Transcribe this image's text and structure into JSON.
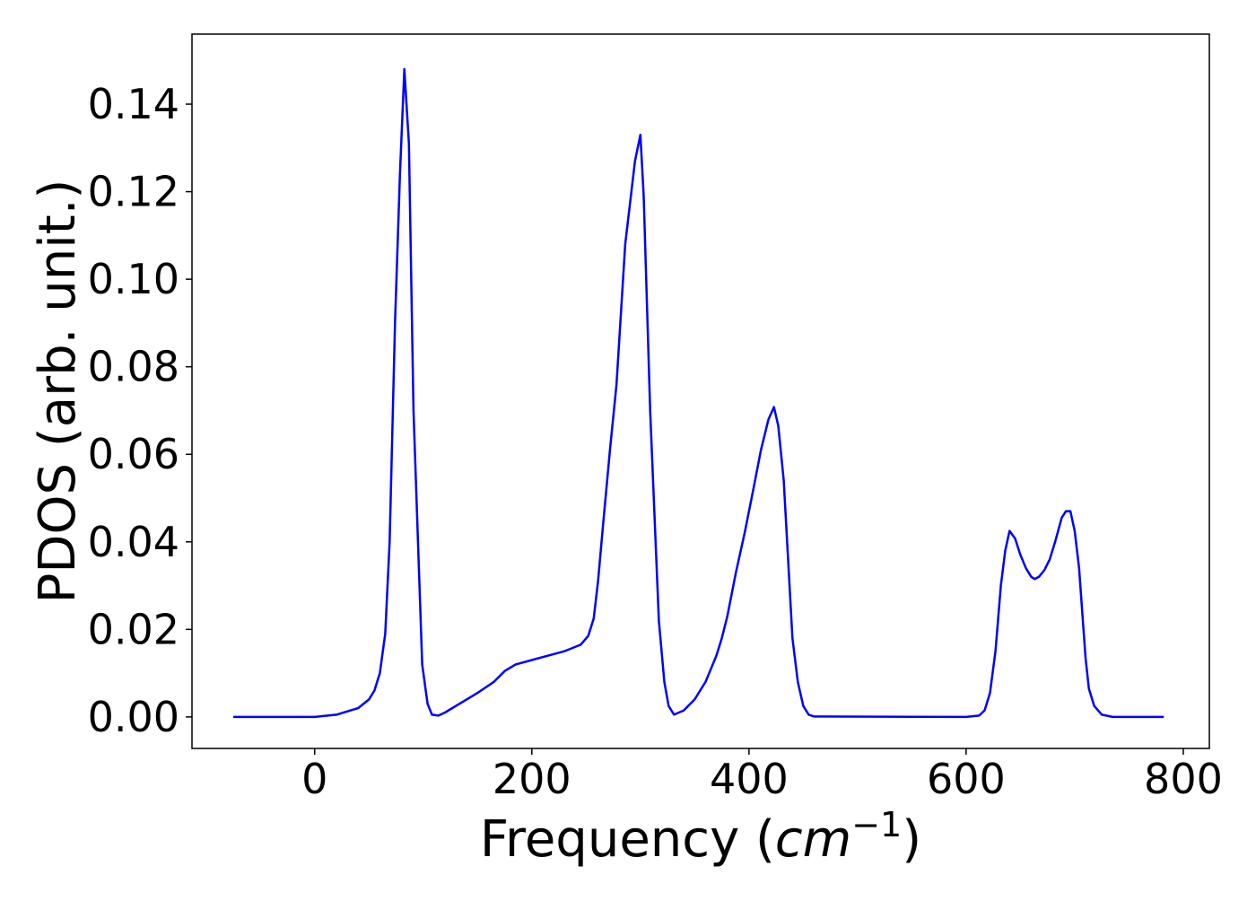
{
  "chart_data": {
    "type": "line",
    "ylabel": "PDOS (arb. unit.)",
    "xlabel": [
      "Frequency (",
      "cm",
      "−1",
      ")"
    ],
    "xlim": [
      -113,
      824
    ],
    "ylim": [
      -0.0072,
      0.156
    ],
    "xticks": [
      0,
      200,
      400,
      600,
      800
    ],
    "yticks": [
      {
        "value": 0,
        "label": "0.00"
      },
      0.02,
      0.04,
      0.06,
      0.08,
      {
        "value": 0.1,
        "label": "0.10"
      },
      0.12,
      0.14
    ],
    "series": [
      {
        "color": "#0000ff",
        "x": [
          -75,
          0,
          20,
          40,
          50,
          55,
          60,
          65,
          69,
          74,
          78.5,
          82.6,
          86.8,
          91,
          99,
          104,
          108,
          114,
          120,
          130,
          140,
          150,
          165,
          175,
          185,
          200,
          215,
          230,
          245,
          252,
          257,
          261,
          266,
          272,
          278,
          286,
          295,
          300,
          303,
          309,
          317,
          322,
          326,
          331,
          340,
          350,
          360,
          365,
          370,
          375,
          380,
          388,
          396,
          404,
          411,
          418,
          423,
          427,
          432,
          440,
          445,
          450,
          455,
          460,
          600,
          612,
          617,
          622,
          627,
          632,
          636,
          640,
          645,
          650,
          655,
          660,
          663,
          667,
          672,
          677,
          682,
          688,
          692,
          696,
          700,
          704,
          710,
          713,
          718,
          725,
          735,
          782
        ],
        "values": [
          0,
          0,
          0.0005,
          0.002,
          0.004,
          0.006,
          0.01,
          0.019,
          0.04,
          0.09,
          0.124,
          0.148,
          0.131,
          0.07,
          0.012,
          0.003,
          0.0005,
          0.0003,
          0.001,
          0.0025,
          0.004,
          0.0055,
          0.008,
          0.0105,
          0.012,
          0.013,
          0.014,
          0.015,
          0.0165,
          0.0185,
          0.0225,
          0.031,
          0.045,
          0.061,
          0.076,
          0.108,
          0.127,
          0.133,
          0.119,
          0.07,
          0.022,
          0.008,
          0.0025,
          0.0005,
          0.0015,
          0.004,
          0.008,
          0.011,
          0.014,
          0.018,
          0.023,
          0.033,
          0.042,
          0.052,
          0.061,
          0.068,
          0.0708,
          0.0665,
          0.054,
          0.018,
          0.008,
          0.0025,
          0.0005,
          0.0001,
          0,
          0.0003,
          0.0015,
          0.0055,
          0.015,
          0.03,
          0.038,
          0.0425,
          0.0408,
          0.037,
          0.034,
          0.032,
          0.0315,
          0.032,
          0.0335,
          0.036,
          0.04,
          0.0455,
          0.047,
          0.047,
          0.0425,
          0.034,
          0.0135,
          0.0065,
          0.0025,
          0.0005,
          0,
          0
        ]
      }
    ]
  }
}
